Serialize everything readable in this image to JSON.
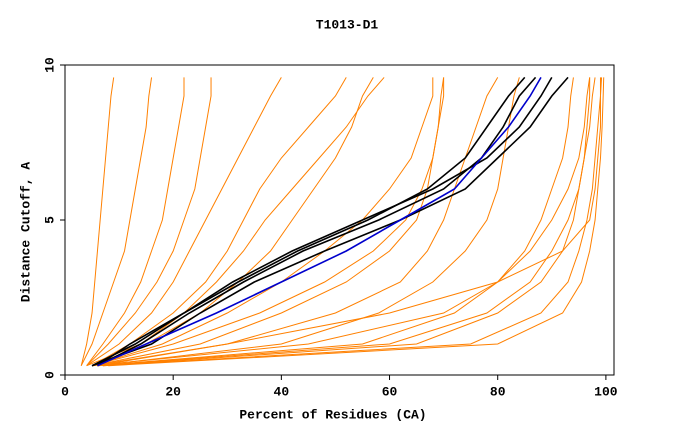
{
  "chart_data": {
    "type": "line",
    "title": "T1013-D1",
    "x_label": "Percent of Residues (CA)",
    "y_label": "Distance Cutoff, A",
    "xlim": [
      0,
      101.5
    ],
    "ylim": [
      0,
      10
    ],
    "xticks": [
      0,
      20,
      40,
      60,
      80,
      100
    ],
    "yticks": [
      0,
      5,
      10
    ],
    "series": [
      {
        "color": "#ff8000",
        "x": [
          3,
          4,
          5,
          5.5,
          6,
          6.5,
          7,
          7.5,
          8,
          8.5,
          9
        ],
        "values": [
          0.3,
          1,
          2,
          3,
          4,
          5,
          6,
          7,
          8,
          9,
          9.6
        ]
      },
      {
        "color": "#ff8000",
        "x": [
          3,
          5,
          7,
          9,
          11,
          12,
          13,
          14,
          15,
          15.5,
          16
        ],
        "values": [
          0.3,
          1,
          2,
          3,
          4,
          5,
          6,
          7,
          8,
          9,
          9.6
        ]
      },
      {
        "color": "#ff8000",
        "x": [
          4,
          7,
          11,
          14,
          16,
          18,
          19,
          20,
          21,
          22,
          22
        ],
        "values": [
          0.3,
          1,
          2,
          3,
          4,
          5,
          6,
          7,
          8,
          9,
          9.6
        ]
      },
      {
        "color": "#ff8000",
        "x": [
          4,
          8,
          13,
          17,
          20,
          22,
          24,
          25,
          26,
          27,
          27
        ],
        "values": [
          0.3,
          1,
          2,
          3,
          4,
          5,
          6,
          7,
          8,
          9,
          9.6
        ]
      },
      {
        "color": "#ff8000",
        "x": [
          4,
          10,
          16,
          20,
          23,
          26,
          29,
          32,
          35,
          38,
          40
        ],
        "values": [
          0.3,
          1,
          2,
          3,
          4,
          5,
          6,
          7,
          8,
          9,
          9.6
        ]
      },
      {
        "color": "#ff8000",
        "x": [
          5,
          12,
          20,
          26,
          30,
          33,
          36,
          40,
          45,
          50,
          52
        ],
        "values": [
          0.3,
          1,
          2,
          3,
          4,
          5,
          6,
          7,
          8,
          9,
          9.6
        ]
      },
      {
        "color": "#ff8000",
        "x": [
          5,
          15,
          25,
          32,
          38,
          42,
          46,
          50,
          53,
          55,
          57
        ],
        "values": [
          0.3,
          1,
          2,
          3,
          4,
          5,
          6,
          7,
          8,
          9,
          9.6
        ]
      },
      {
        "color": "#ff8000",
        "x": [
          5,
          18,
          30,
          40,
          48,
          55,
          60,
          64,
          66,
          68,
          68
        ],
        "values": [
          0.3,
          1,
          2,
          3,
          4,
          5,
          6,
          7,
          8,
          9,
          9.6
        ]
      },
      {
        "color": "#ff8000",
        "x": [
          5,
          20,
          36,
          48,
          57,
          63,
          66,
          68,
          69,
          69.5,
          70
        ],
        "values": [
          0.3,
          1,
          2,
          3,
          4,
          5,
          6,
          7,
          8,
          9,
          9.6
        ]
      },
      {
        "color": "#ff8000",
        "x": [
          5,
          25,
          40,
          52,
          60,
          65,
          67,
          68,
          69,
          70,
          70
        ],
        "values": [
          0.3,
          1,
          2,
          3,
          4,
          5,
          6,
          7,
          8,
          9,
          9.6
        ]
      },
      {
        "color": "#ff8000",
        "x": [
          6,
          30,
          50,
          62,
          67,
          70,
          72,
          74,
          76,
          78,
          80
        ],
        "values": [
          0.3,
          1,
          2,
          3,
          4,
          5,
          6,
          7,
          8,
          9,
          9.6
        ]
      },
      {
        "color": "#ff8000",
        "x": [
          6,
          40,
          58,
          68,
          74,
          78,
          80,
          81,
          82,
          83,
          84
        ],
        "values": [
          0.3,
          1,
          2,
          3,
          4,
          5,
          6,
          7,
          8,
          9,
          9.6
        ]
      },
      {
        "color": "#ff8000",
        "x": [
          6,
          55,
          72,
          80,
          85,
          88,
          90,
          92,
          93,
          93.5,
          94
        ],
        "values": [
          0.3,
          1,
          2,
          3,
          4,
          5,
          6,
          7,
          8,
          9,
          9.6
        ]
      },
      {
        "color": "#ff8000",
        "x": [
          7,
          65,
          80,
          88,
          92,
          94,
          95,
          96,
          96.5,
          97,
          97
        ],
        "values": [
          0.3,
          1,
          2,
          3,
          4,
          5,
          6,
          7,
          8,
          9,
          9.6
        ]
      },
      {
        "color": "#ff8000",
        "x": [
          7,
          75,
          88,
          93,
          95,
          96.5,
          97.5,
          98,
          98.5,
          99,
          99
        ],
        "values": [
          0.3,
          1,
          2,
          3,
          4,
          5,
          6,
          7,
          8,
          9,
          9.6
        ]
      },
      {
        "color": "#ff8000",
        "x": [
          8,
          80,
          92,
          95.5,
          97,
          98,
          98.5,
          99,
          99.3,
          99.5,
          99.6
        ],
        "values": [
          0.3,
          1,
          2,
          3,
          4,
          5,
          6,
          7,
          8,
          9,
          9.6
        ]
      },
      {
        "color": "#ff8000",
        "x": [
          5,
          30,
          60,
          80,
          92,
          97,
          98,
          98.5,
          99,
          99,
          99.2
        ],
        "values": [
          0.3,
          1,
          2,
          3,
          4,
          5,
          6,
          7,
          8,
          9,
          9.6
        ]
      },
      {
        "color": "#ff8000",
        "x": [
          4,
          14,
          22,
          28,
          33,
          37,
          42,
          47,
          52,
          56,
          59
        ],
        "values": [
          0.3,
          1,
          2,
          3,
          4,
          5,
          6,
          7,
          8,
          9,
          9.6
        ]
      },
      {
        "color": "#ff8000",
        "x": [
          5,
          45,
          70,
          80,
          86,
          90,
          93,
          95,
          96,
          96.5,
          97
        ],
        "values": [
          0.3,
          1,
          2,
          3,
          4,
          5,
          6,
          7,
          8,
          9,
          9.6
        ]
      },
      {
        "color": "#ff8000",
        "x": [
          6,
          60,
          78,
          86,
          90,
          93,
          95,
          96,
          97,
          97.5,
          98
        ],
        "values": [
          0.3,
          1,
          2,
          3,
          4,
          5,
          6,
          7,
          8,
          9,
          9.6
        ]
      },
      {
        "color": "#000000",
        "x": [
          5,
          13,
          22,
          32,
          43,
          56,
          67,
          74,
          78,
          82,
          85
        ],
        "values": [
          0.3,
          1,
          2,
          3,
          4,
          5,
          6,
          7,
          8,
          9,
          9.6
        ]
      },
      {
        "color": "#000000",
        "x": [
          6,
          14,
          23,
          33,
          44,
          58,
          70,
          77,
          81,
          84,
          87
        ],
        "values": [
          0.3,
          1,
          2,
          3,
          4,
          5,
          6,
          7,
          8,
          9,
          9.6
        ]
      },
      {
        "color": "#000000",
        "x": [
          6,
          12,
          22,
          31,
          42,
          55,
          68,
          78,
          84,
          88,
          90
        ],
        "values": [
          0.3,
          1,
          2,
          3,
          4,
          5,
          6,
          7,
          8,
          9,
          9.6
        ]
      },
      {
        "color": "#000000",
        "x": [
          5,
          16,
          25,
          35,
          48,
          62,
          74,
          80,
          86,
          90,
          93
        ],
        "values": [
          0.3,
          1,
          2,
          3,
          4,
          5,
          6,
          7,
          8,
          9,
          9.6
        ]
      },
      {
        "color": "#0000cc",
        "x": [
          6,
          15,
          28,
          40,
          52,
          62,
          72,
          77,
          82,
          86,
          88
        ],
        "values": [
          0.3,
          1,
          2,
          3,
          4,
          5,
          6,
          7,
          8,
          9,
          9.6
        ]
      }
    ]
  }
}
